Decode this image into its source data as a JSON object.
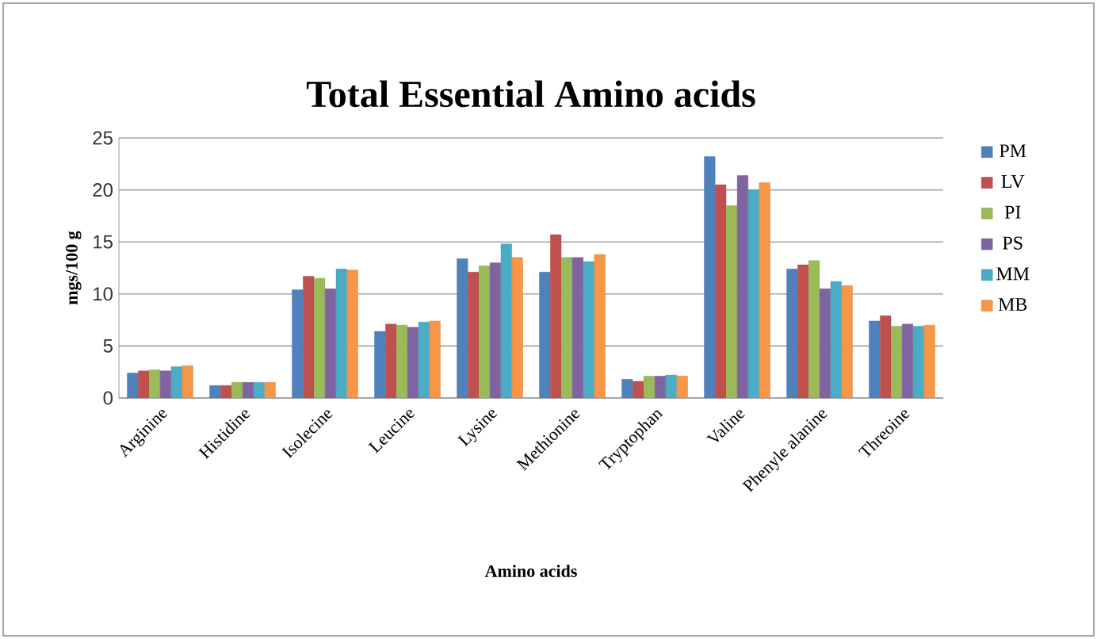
{
  "chart_data": {
    "type": "bar",
    "title": "Total Essential Amino acids",
    "xlabel": "Amino acids",
    "ylabel": "mgs/100 g",
    "categories": [
      "Arginine",
      "Histidine",
      "Isolecine",
      "Leucine",
      "Lysine",
      "Methionine",
      "Tryptophan",
      "Valine",
      "Phenyle alanine",
      "Threoine"
    ],
    "series": [
      {
        "name": "PM",
        "color": "#4f81bd",
        "values": [
          2.4,
          1.2,
          10.4,
          6.4,
          13.4,
          12.1,
          1.8,
          23.2,
          12.4,
          7.4
        ]
      },
      {
        "name": "LV",
        "color": "#c0504d",
        "values": [
          2.6,
          1.2,
          11.7,
          7.1,
          12.1,
          15.7,
          1.6,
          20.5,
          12.8,
          7.9
        ]
      },
      {
        "name": "PI",
        "color": "#9bbb59",
        "values": [
          2.7,
          1.5,
          11.5,
          7.0,
          12.7,
          13.5,
          2.1,
          18.5,
          13.2,
          6.9
        ]
      },
      {
        "name": "PS",
        "color": "#8064a2",
        "values": [
          2.6,
          1.5,
          10.5,
          6.8,
          13.0,
          13.5,
          2.1,
          21.4,
          10.5,
          7.1
        ]
      },
      {
        "name": "MM",
        "color": "#4bacc6",
        "values": [
          3.0,
          1.5,
          12.4,
          7.3,
          14.8,
          13.1,
          2.2,
          20.0,
          11.2,
          6.9
        ]
      },
      {
        "name": "MB",
        "color": "#f79646",
        "values": [
          3.1,
          1.5,
          12.3,
          7.4,
          13.5,
          13.8,
          2.1,
          20.7,
          10.8,
          7.0
        ]
      }
    ],
    "ylim": [
      0,
      25
    ],
    "yticks": [
      0,
      5,
      10,
      15,
      20,
      25
    ],
    "grid": "y",
    "legend": "right"
  }
}
